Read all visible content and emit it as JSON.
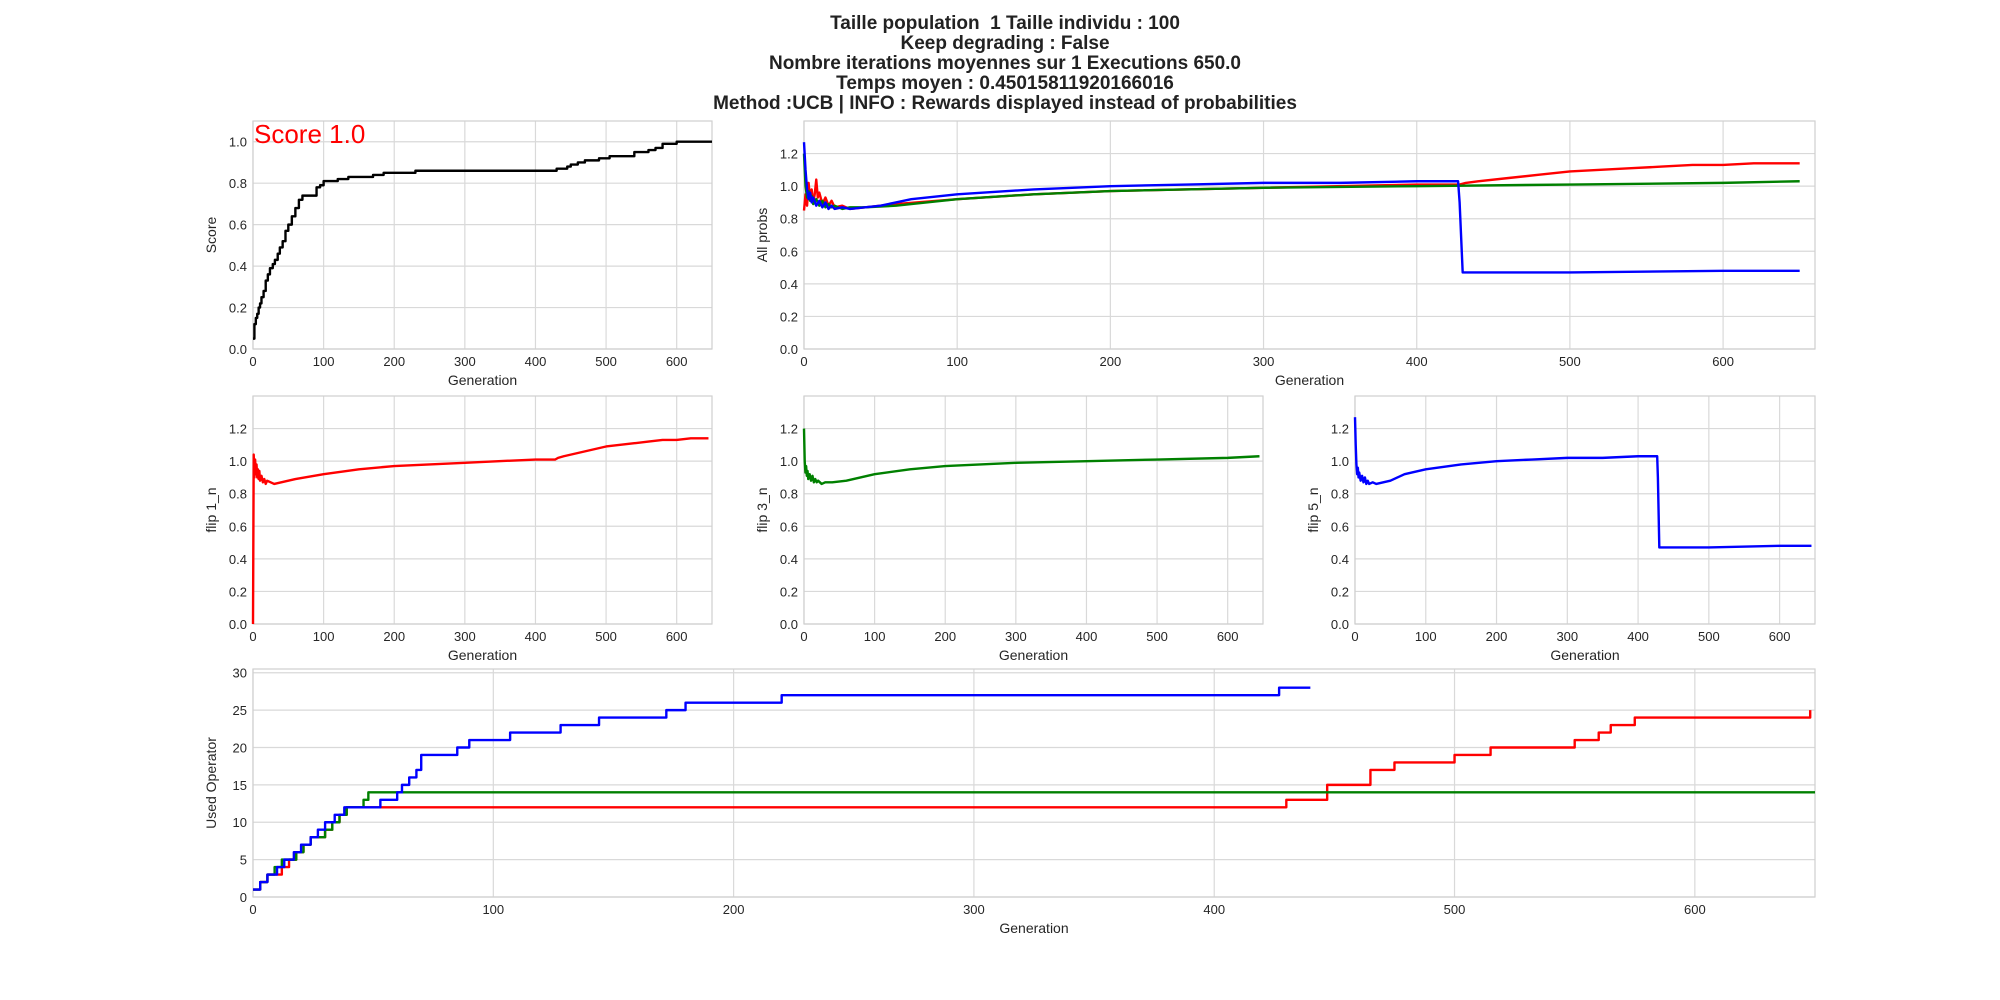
{
  "figure": {
    "title_lines": [
      "Taille population  1 Taille individu : 100",
      "Keep degrading : False",
      "Nombre iterations moyennes sur 1 Executions 650.0",
      "Temps moyen : 0.45015811920166016",
      "Method :UCB | INFO : Rewards displayed instead of probabilities"
    ]
  },
  "chart_data": [
    {
      "type": "line",
      "id": "score",
      "xlabel": "Generation",
      "ylabel": "Score",
      "annotation": "Score 1.0",
      "annotation_color": "#ff0000",
      "xlim": [
        0,
        650
      ],
      "ylim": [
        0,
        1.1
      ],
      "xticks": [
        0,
        100,
        200,
        300,
        400,
        500,
        600
      ],
      "yticks": [
        0.0,
        0.2,
        0.4,
        0.6,
        0.8,
        1.0
      ],
      "tick_format": "1",
      "grid": true,
      "series": [
        {
          "color": "#000000",
          "step": true,
          "x": [
            0,
            2,
            4,
            6,
            8,
            10,
            12,
            15,
            18,
            21,
            24,
            28,
            31,
            35,
            38,
            42,
            46,
            50,
            55,
            60,
            65,
            70,
            80,
            90,
            95,
            100,
            110,
            120,
            135,
            150,
            170,
            185,
            200,
            230,
            260,
            300,
            350,
            420,
            430,
            435,
            445,
            450,
            460,
            470,
            490,
            505,
            520,
            540,
            560,
            570,
            580,
            600,
            650
          ],
          "y": [
            0.05,
            0.12,
            0.15,
            0.17,
            0.2,
            0.22,
            0.25,
            0.28,
            0.33,
            0.36,
            0.39,
            0.41,
            0.43,
            0.46,
            0.49,
            0.52,
            0.57,
            0.6,
            0.64,
            0.68,
            0.72,
            0.74,
            0.74,
            0.78,
            0.79,
            0.81,
            0.81,
            0.82,
            0.83,
            0.83,
            0.84,
            0.85,
            0.85,
            0.86,
            0.86,
            0.86,
            0.86,
            0.86,
            0.87,
            0.87,
            0.88,
            0.89,
            0.9,
            0.91,
            0.92,
            0.93,
            0.93,
            0.95,
            0.96,
            0.97,
            0.99,
            1.0,
            1.0
          ]
        }
      ]
    },
    {
      "type": "line",
      "id": "all-probs",
      "xlabel": "Generation",
      "ylabel": "All probs",
      "xlim": [
        0,
        660
      ],
      "ylim": [
        0,
        1.4
      ],
      "xticks": [
        0,
        100,
        200,
        300,
        400,
        500,
        600
      ],
      "yticks": [
        0.0,
        0.2,
        0.4,
        0.6,
        0.8,
        1.0,
        1.2
      ],
      "tick_format": "1",
      "grid": true,
      "series": [
        {
          "color": "#ff0000",
          "x": [
            0,
            1,
            2,
            3,
            4,
            5,
            6,
            7,
            8,
            9,
            10,
            12,
            14,
            16,
            18,
            20,
            25,
            30,
            40,
            60,
            100,
            150,
            200,
            300,
            400,
            428,
            432,
            440,
            460,
            480,
            500,
            520,
            540,
            560,
            580,
            600,
            620,
            650
          ],
          "y": [
            0.85,
            0.95,
            0.88,
            1.02,
            0.92,
            0.98,
            0.9,
            0.95,
            1.04,
            0.93,
            0.96,
            0.89,
            0.93,
            0.88,
            0.91,
            0.87,
            0.88,
            0.86,
            0.87,
            0.89,
            0.92,
            0.95,
            0.97,
            0.99,
            1.01,
            1.01,
            1.02,
            1.03,
            1.05,
            1.07,
            1.09,
            1.1,
            1.11,
            1.12,
            1.13,
            1.13,
            1.14,
            1.14
          ]
        },
        {
          "color": "#008000",
          "x": [
            0,
            1,
            2,
            3,
            4,
            5,
            6,
            8,
            10,
            12,
            14,
            16,
            18,
            20,
            25,
            30,
            40,
            60,
            100,
            150,
            200,
            300,
            400,
            500,
            600,
            650
          ],
          "y": [
            1.2,
            1.0,
            0.93,
            0.97,
            0.91,
            0.94,
            0.89,
            0.92,
            0.88,
            0.91,
            0.87,
            0.89,
            0.87,
            0.88,
            0.86,
            0.87,
            0.87,
            0.88,
            0.92,
            0.95,
            0.97,
            0.99,
            1.0,
            1.01,
            1.02,
            1.03
          ]
        },
        {
          "color": "#0000ff",
          "x": [
            0,
            1,
            2,
            3,
            4,
            5,
            6,
            8,
            10,
            12,
            14,
            16,
            18,
            20,
            25,
            30,
            40,
            50,
            60,
            70,
            80,
            100,
            150,
            200,
            250,
            300,
            350,
            400,
            427,
            428,
            430,
            500,
            600,
            650
          ],
          "y": [
            1.27,
            1.1,
            0.98,
            0.92,
            0.96,
            0.9,
            0.93,
            0.88,
            0.91,
            0.87,
            0.9,
            0.86,
            0.88,
            0.86,
            0.87,
            0.86,
            0.87,
            0.88,
            0.9,
            0.92,
            0.93,
            0.95,
            0.98,
            1.0,
            1.01,
            1.02,
            1.02,
            1.03,
            1.03,
            0.9,
            0.47,
            0.47,
            0.48,
            0.48
          ]
        }
      ]
    },
    {
      "type": "line",
      "id": "flip-1",
      "xlabel": "Generation",
      "ylabel": "flip 1_n",
      "xlim": [
        0,
        650
      ],
      "ylim": [
        0,
        1.4
      ],
      "xticks": [
        0,
        100,
        200,
        300,
        400,
        500,
        600
      ],
      "yticks": [
        0.0,
        0.2,
        0.4,
        0.6,
        0.8,
        1.0,
        1.2
      ],
      "tick_format": "1",
      "grid": true,
      "series": [
        {
          "color": "#ff0000",
          "x": [
            0,
            1,
            2,
            3,
            4,
            5,
            6,
            7,
            8,
            9,
            10,
            12,
            14,
            16,
            18,
            20,
            25,
            30,
            40,
            60,
            100,
            150,
            200,
            300,
            400,
            428,
            432,
            440,
            460,
            480,
            500,
            520,
            540,
            560,
            580,
            600,
            620,
            645
          ],
          "y": [
            0.0,
            1.04,
            0.9,
            1.01,
            0.92,
            0.98,
            0.9,
            0.95,
            0.89,
            0.94,
            0.88,
            0.91,
            0.87,
            0.89,
            0.86,
            0.88,
            0.87,
            0.86,
            0.87,
            0.89,
            0.92,
            0.95,
            0.97,
            0.99,
            1.01,
            1.01,
            1.02,
            1.03,
            1.05,
            1.07,
            1.09,
            1.1,
            1.11,
            1.12,
            1.13,
            1.13,
            1.14,
            1.14
          ]
        }
      ]
    },
    {
      "type": "line",
      "id": "flip-3",
      "xlabel": "Generation",
      "ylabel": "flip 3_n",
      "xlim": [
        0,
        650
      ],
      "ylim": [
        0,
        1.4
      ],
      "xticks": [
        0,
        100,
        200,
        300,
        400,
        500,
        600
      ],
      "yticks": [
        0.0,
        0.2,
        0.4,
        0.6,
        0.8,
        1.0,
        1.2
      ],
      "tick_format": "1",
      "grid": true,
      "series": [
        {
          "color": "#008000",
          "x": [
            0,
            1,
            2,
            3,
            4,
            5,
            6,
            8,
            10,
            12,
            14,
            16,
            18,
            20,
            25,
            30,
            40,
            60,
            100,
            150,
            200,
            300,
            400,
            500,
            600,
            645
          ],
          "y": [
            1.2,
            1.0,
            0.93,
            0.97,
            0.91,
            0.94,
            0.89,
            0.92,
            0.88,
            0.91,
            0.87,
            0.89,
            0.87,
            0.88,
            0.86,
            0.87,
            0.87,
            0.88,
            0.92,
            0.95,
            0.97,
            0.99,
            1.0,
            1.01,
            1.02,
            1.03
          ]
        }
      ]
    },
    {
      "type": "line",
      "id": "flip-5",
      "xlabel": "Generation",
      "ylabel": "flip 5_n",
      "xlim": [
        0,
        650
      ],
      "ylim": [
        0,
        1.4
      ],
      "xticks": [
        0,
        100,
        200,
        300,
        400,
        500,
        600
      ],
      "yticks": [
        0.0,
        0.2,
        0.4,
        0.6,
        0.8,
        1.0,
        1.2
      ],
      "tick_format": "1",
      "grid": true,
      "series": [
        {
          "color": "#0000ff",
          "x": [
            0,
            1,
            2,
            3,
            4,
            5,
            6,
            8,
            10,
            12,
            14,
            16,
            18,
            20,
            25,
            30,
            40,
            50,
            60,
            70,
            80,
            100,
            150,
            200,
            250,
            300,
            350,
            400,
            427,
            428,
            430,
            500,
            600,
            645
          ],
          "y": [
            1.27,
            1.1,
            0.98,
            0.92,
            0.96,
            0.9,
            0.93,
            0.88,
            0.91,
            0.87,
            0.9,
            0.86,
            0.88,
            0.86,
            0.87,
            0.86,
            0.87,
            0.88,
            0.9,
            0.92,
            0.93,
            0.95,
            0.98,
            1.0,
            1.01,
            1.02,
            1.02,
            1.03,
            1.03,
            0.9,
            0.47,
            0.47,
            0.48,
            0.48
          ]
        }
      ]
    },
    {
      "type": "line",
      "id": "used-operator",
      "xlabel": "Generation",
      "ylabel": "Used Operator",
      "xlim": [
        0,
        650
      ],
      "ylim": [
        0,
        30.5
      ],
      "xticks": [
        0,
        100,
        200,
        300,
        400,
        500,
        600
      ],
      "yticks": [
        0,
        5,
        10,
        15,
        20,
        25,
        30
      ],
      "tick_format": "0",
      "grid": true,
      "series": [
        {
          "color": "#ff0000",
          "step": true,
          "x": [
            0,
            3,
            6,
            9,
            12,
            15,
            18,
            21,
            24,
            27,
            30,
            33,
            36,
            39,
            42,
            430,
            447,
            455,
            465,
            475,
            500,
            515,
            530,
            550,
            560,
            565,
            575,
            648
          ],
          "y": [
            1,
            2,
            3,
            3,
            4,
            5,
            6,
            7,
            8,
            8,
            9,
            10,
            11,
            12,
            12,
            13,
            15,
            15,
            17,
            18,
            19,
            20,
            20,
            21,
            22,
            23,
            24,
            25
          ]
        },
        {
          "color": "#008000",
          "step": true,
          "x": [
            0,
            3,
            6,
            9,
            12,
            15,
            18,
            21,
            24,
            27,
            30,
            33,
            36,
            39,
            42,
            46,
            48,
            650
          ],
          "y": [
            1,
            2,
            3,
            4,
            5,
            5,
            6,
            7,
            8,
            8,
            9,
            10,
            11,
            12,
            12,
            13,
            14,
            14
          ]
        },
        {
          "color": "#0000ff",
          "step": true,
          "x": [
            0,
            3,
            6,
            10,
            13,
            17,
            20,
            24,
            27,
            30,
            34,
            38,
            42,
            48,
            53,
            60,
            62,
            65,
            68,
            70,
            85,
            90,
            100,
            107,
            128,
            144,
            161,
            172,
            180,
            220,
            230,
            427,
            440
          ],
          "y": [
            1,
            2,
            3,
            4,
            5,
            6,
            7,
            8,
            9,
            10,
            11,
            12,
            12,
            12,
            13,
            14,
            15,
            16,
            17,
            19,
            20,
            21,
            21,
            22,
            23,
            24,
            24,
            25,
            26,
            27,
            27,
            28,
            28
          ]
        }
      ]
    }
  ]
}
